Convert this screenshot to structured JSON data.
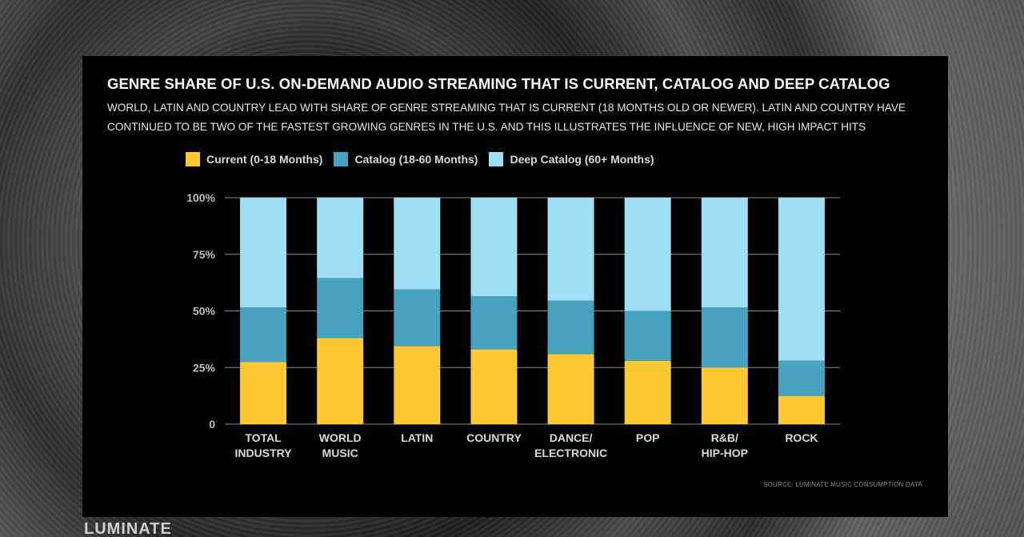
{
  "brand": "LUMINATE",
  "chart_data": {
    "type": "bar",
    "stacked": true,
    "title": "GENRE SHARE OF U.S. ON-DEMAND AUDIO STREAMING THAT IS CURRENT, CATALOG AND DEEP CATALOG",
    "subtitle": "WORLD, LATIN AND COUNTRY LEAD WITH SHARE OF GENRE STREAMING THAT IS CURRENT (18 MONTHS OLD OR NEWER). LATIN AND COUNTRY HAVE CONTINUED TO BE TWO OF THE FASTEST GROWING GENRES IN THE U.S. AND THIS ILLUSTRATES THE INFLUENCE OF NEW, HIGH IMPACT HITS",
    "categories": [
      [
        "TOTAL",
        "INDUSTRY"
      ],
      [
        "WORLD",
        "MUSIC"
      ],
      [
        "LATIN"
      ],
      [
        "COUNTRY"
      ],
      [
        "DANCE/",
        "ELECTRONIC"
      ],
      [
        "POP"
      ],
      [
        "R&B/",
        "HIP-HOP"
      ],
      [
        "ROCK"
      ]
    ],
    "series": [
      {
        "name": "Current (0-18 Months)",
        "color": "#fcc934",
        "values": [
          27.5,
          38,
          34.5,
          33,
          31,
          28,
          25,
          12.5
        ]
      },
      {
        "name": "Catalog (18-60 Months)",
        "color": "#46a2bf",
        "values": [
          24,
          26.5,
          25,
          23.5,
          23.5,
          22,
          26.5,
          15.5
        ]
      },
      {
        "name": "Deep Catalog (60+ Months)",
        "color": "#a0def5",
        "values": [
          48.5,
          35.5,
          40.5,
          43.5,
          45.5,
          50,
          48.5,
          72
        ]
      }
    ],
    "yticks": [
      {
        "value": 0,
        "label": "0"
      },
      {
        "value": 25,
        "label": "25%"
      },
      {
        "value": 50,
        "label": "50%"
      },
      {
        "value": 75,
        "label": "75%"
      },
      {
        "value": 100,
        "label": "100%"
      }
    ],
    "ylim": [
      0,
      100
    ],
    "gridlines": true,
    "legend_position": "top-left",
    "source": "SOURCE: LUMINATE MUSIC CONSUMPTION DATA"
  }
}
